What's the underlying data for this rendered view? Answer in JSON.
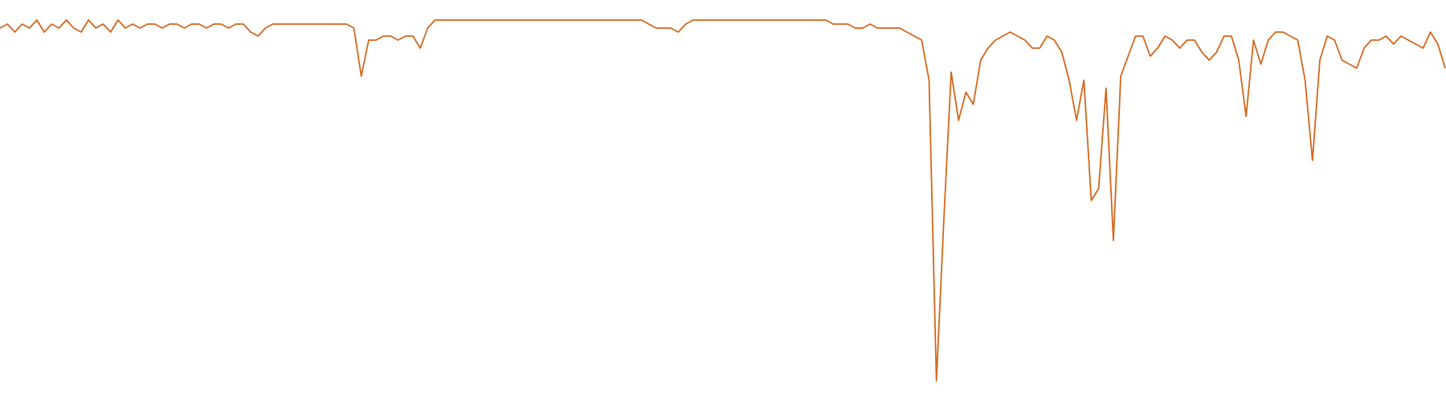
{
  "chart_data": {
    "type": "line",
    "color": "#d4661a",
    "ylim": [
      0,
      100
    ],
    "values": [
      93,
      94,
      92,
      94,
      93,
      95,
      92,
      94,
      93,
      95,
      93,
      92,
      95,
      93,
      94,
      92,
      95,
      93,
      94,
      93,
      94,
      94,
      93,
      94,
      94,
      93,
      94,
      94,
      93,
      94,
      94,
      93,
      94,
      94,
      92,
      91,
      93,
      94,
      94,
      94,
      94,
      94,
      94,
      94,
      94,
      94,
      94,
      94,
      93,
      81,
      90,
      90,
      91,
      91,
      90,
      91,
      91,
      88,
      93,
      95,
      95,
      95,
      95,
      95,
      95,
      95,
      95,
      95,
      95,
      95,
      95,
      95,
      95,
      95,
      95,
      95,
      95,
      95,
      95,
      95,
      95,
      95,
      95,
      95,
      95,
      95,
      95,
      95,
      94,
      93,
      93,
      93,
      92,
      94,
      95,
      95,
      95,
      95,
      95,
      95,
      95,
      95,
      95,
      95,
      95,
      95,
      95,
      95,
      95,
      95,
      95,
      95,
      95,
      94,
      94,
      94,
      93,
      93,
      94,
      93,
      93,
      93,
      93,
      92,
      91,
      90,
      80,
      5,
      45,
      82,
      70,
      77,
      74,
      85,
      88,
      90,
      91,
      92,
      91,
      90,
      88,
      88,
      91,
      90,
      87,
      80,
      70,
      80,
      50,
      53,
      78,
      40,
      81,
      86,
      91,
      91,
      86,
      88,
      91,
      90,
      88,
      90,
      90,
      87,
      85,
      87,
      91,
      91,
      85,
      71,
      90,
      84,
      90,
      92,
      92,
      91,
      90,
      80,
      60,
      85,
      91,
      90,
      85,
      84,
      83,
      88,
      90,
      90,
      91,
      89,
      91,
      90,
      89,
      88,
      92,
      89,
      83
    ]
  }
}
